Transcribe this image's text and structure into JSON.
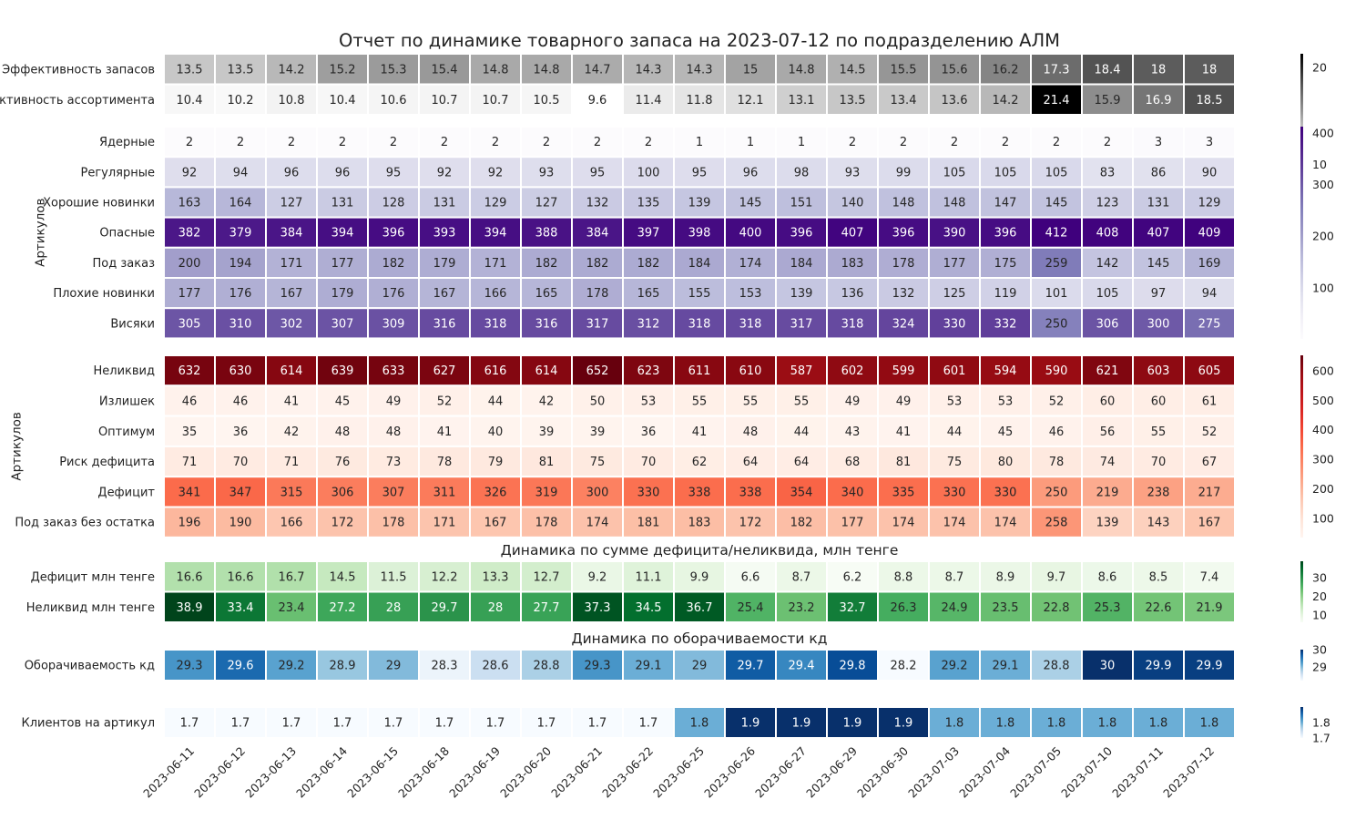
{
  "title": "Отчет по динамике товарного запаса на 2023-07-12 по подразделению АЛМ",
  "dates": [
    "2023-06-11",
    "2023-06-12",
    "2023-06-13",
    "2023-06-14",
    "2023-06-15",
    "2023-06-18",
    "2023-06-19",
    "2023-06-20",
    "2023-06-21",
    "2023-06-22",
    "2023-06-25",
    "2023-06-26",
    "2023-06-27",
    "2023-06-29",
    "2023-06-30",
    "2023-07-03",
    "2023-07-04",
    "2023-07-05",
    "2023-07-10",
    "2023-07-11",
    "2023-07-12"
  ],
  "subtitles": {
    "sum": "Динамика по сумме дефицита/неликвида, млн тенге",
    "turnover": "Динамика по оборачиваемости кд"
  },
  "chart_data": [
    {
      "type": "heatmap",
      "colormap": "Greys",
      "colorbar_ticks": [
        10,
        20
      ],
      "rows": [
        {
          "label": "Эффективность запасов",
          "values": [
            13.5,
            13.5,
            14.2,
            15.2,
            15.3,
            15.4,
            14.8,
            14.8,
            14.7,
            14.3,
            14.3,
            15.0,
            14.8,
            14.5,
            15.5,
            15.6,
            16.2,
            17.3,
            18.4,
            18.0,
            18.0
          ]
        },
        {
          "label": "Эффективность ассортимента",
          "values": [
            10.4,
            10.2,
            10.8,
            10.4,
            10.6,
            10.7,
            10.7,
            10.5,
            9.6,
            11.4,
            11.8,
            12.1,
            13.1,
            13.5,
            13.4,
            13.6,
            14.2,
            21.4,
            15.9,
            16.9,
            18.5
          ]
        }
      ]
    },
    {
      "type": "heatmap",
      "colormap": "Purples",
      "ylabel": "Артикулов",
      "colorbar_ticks": [
        100,
        200,
        300,
        400
      ],
      "rows": [
        {
          "label": "Ядерные",
          "values": [
            2,
            2,
            2,
            2,
            2,
            2,
            2,
            2,
            2,
            2,
            1,
            1,
            1,
            2,
            2,
            2,
            2,
            2,
            2,
            3,
            3
          ]
        },
        {
          "label": "Регулярные",
          "values": [
            92,
            94,
            96,
            96,
            95,
            92,
            92,
            93,
            95,
            100,
            95,
            96,
            98,
            93,
            99,
            105,
            105,
            105,
            83,
            86,
            90
          ]
        },
        {
          "label": "Хорошие новинки",
          "values": [
            163,
            164,
            127,
            131,
            128,
            131,
            129,
            127,
            132,
            135,
            139,
            145,
            151,
            140,
            148,
            148,
            147,
            145,
            123,
            131,
            129
          ]
        },
        {
          "label": "Опасные",
          "values": [
            382,
            379,
            384,
            394,
            396,
            393,
            394,
            388,
            384,
            397,
            398,
            400,
            396,
            407,
            396,
            390,
            396,
            412,
            408,
            407,
            409
          ]
        },
        {
          "label": "Под заказ",
          "values": [
            200,
            194,
            171,
            177,
            182,
            179,
            171,
            182,
            182,
            182,
            184,
            174,
            184,
            183,
            178,
            177,
            175,
            259,
            142,
            145,
            169
          ]
        },
        {
          "label": "Плохие новинки",
          "values": [
            177,
            176,
            167,
            179,
            176,
            167,
            166,
            165,
            178,
            165,
            155,
            153,
            139,
            136,
            132,
            125,
            119,
            101,
            105,
            97,
            94
          ]
        },
        {
          "label": "Висяки",
          "values": [
            305,
            310,
            302,
            307,
            309,
            316,
            318,
            316,
            317,
            312,
            318,
            318,
            317,
            318,
            324,
            330,
            332,
            250,
            306,
            300,
            275
          ]
        }
      ]
    },
    {
      "type": "heatmap",
      "colormap": "Reds",
      "ylabel": "Артикулов",
      "colorbar_ticks": [
        100,
        200,
        300,
        400,
        500,
        600
      ],
      "rows": [
        {
          "label": "Неликвид",
          "values": [
            632,
            630,
            614,
            639,
            633,
            627,
            616,
            614,
            652,
            623,
            611,
            610,
            587,
            602,
            599,
            601,
            594,
            590,
            621,
            603,
            605
          ]
        },
        {
          "label": "Излишек",
          "values": [
            46,
            46,
            41,
            45,
            49,
            52,
            44,
            42,
            50,
            53,
            55,
            55,
            55,
            49,
            49,
            53,
            53,
            52,
            60,
            60,
            61
          ]
        },
        {
          "label": "Оптимум",
          "values": [
            35,
            36,
            42,
            48,
            48,
            41,
            40,
            39,
            39,
            36,
            41,
            48,
            44,
            43,
            41,
            44,
            45,
            46,
            56,
            55,
            52
          ]
        },
        {
          "label": "Риск дефицита",
          "values": [
            71,
            70,
            71,
            76,
            73,
            78,
            79,
            81,
            75,
            70,
            62,
            64,
            64,
            68,
            81,
            75,
            80,
            78,
            74,
            70,
            67
          ]
        },
        {
          "label": "Дефицит",
          "values": [
            341,
            347,
            315,
            306,
            307,
            311,
            326,
            319,
            300,
            330,
            338,
            338,
            354,
            340,
            335,
            330,
            330,
            250,
            219,
            238,
            217
          ]
        },
        {
          "label": "Под заказ без остатка",
          "values": [
            196,
            190,
            166,
            172,
            178,
            171,
            167,
            178,
            174,
            181,
            183,
            172,
            182,
            177,
            174,
            174,
            174,
            258,
            139,
            143,
            167
          ]
        }
      ]
    },
    {
      "type": "heatmap",
      "colormap": "Greens",
      "colorbar_ticks": [
        10,
        20,
        30
      ],
      "rows": [
        {
          "label": "Дефицит млн тенге",
          "values": [
            16.6,
            16.6,
            16.7,
            14.5,
            11.5,
            12.2,
            13.3,
            12.7,
            9.2,
            11.1,
            9.9,
            6.6,
            8.7,
            6.2,
            8.8,
            8.7,
            8.9,
            9.7,
            8.6,
            8.5,
            7.4
          ]
        },
        {
          "label": "Неликвид млн тенге",
          "values": [
            38.9,
            33.4,
            23.4,
            27.2,
            28.0,
            29.7,
            28.0,
            27.7,
            37.3,
            34.5,
            36.7,
            25.4,
            23.2,
            32.7,
            26.3,
            24.9,
            23.5,
            22.8,
            25.3,
            22.6,
            21.9
          ]
        }
      ]
    },
    {
      "type": "heatmap",
      "colormap": "Blues",
      "colorbar_ticks": [
        29,
        30
      ],
      "rows": [
        {
          "label": "Оборачиваемость кд",
          "values": [
            29.3,
            29.6,
            29.2,
            28.9,
            29.0,
            28.3,
            28.6,
            28.8,
            29.3,
            29.1,
            29.0,
            29.7,
            29.4,
            29.8,
            28.2,
            29.2,
            29.1,
            28.8,
            30.0,
            29.9,
            29.9
          ]
        }
      ]
    },
    {
      "type": "heatmap",
      "colormap": "Blues",
      "colorbar_ticks": [
        1.7,
        1.8
      ],
      "rows": [
        {
          "label": "Клиентов на артикул",
          "values": [
            1.7,
            1.7,
            1.7,
            1.7,
            1.7,
            1.7,
            1.7,
            1.7,
            1.7,
            1.7,
            1.8,
            1.9,
            1.9,
            1.9,
            1.9,
            1.8,
            1.8,
            1.8,
            1.8,
            1.8,
            1.8
          ]
        }
      ]
    }
  ]
}
